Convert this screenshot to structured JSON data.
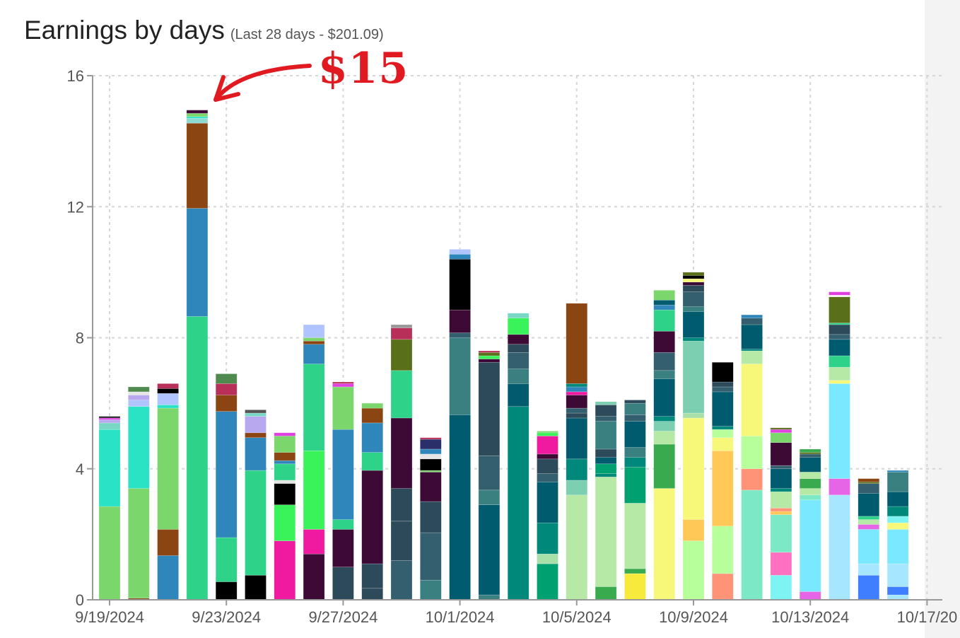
{
  "chart_data": {
    "type": "bar",
    "stacked": true,
    "title": "Earnings by days",
    "subtitle": "(Last 28 days - $201.09)",
    "annotation": "$15",
    "xlabel": "",
    "ylabel": "",
    "ylim": [
      0,
      16
    ],
    "yticks": [
      0,
      4,
      8,
      12,
      16
    ],
    "x_tick_labels": [
      "9/19/2024",
      "9/23/2024",
      "9/27/2024",
      "10/1/2024",
      "10/5/2024",
      "10/9/2024",
      "10/13/2024",
      "10/17/20"
    ],
    "grid": true,
    "categories": [
      "9/19/2024",
      "9/20/2024",
      "9/21/2024",
      "9/22/2024",
      "9/23/2024",
      "9/24/2024",
      "9/25/2024",
      "9/26/2024",
      "9/27/2024",
      "9/28/2024",
      "9/29/2024",
      "9/30/2024",
      "10/1/2024",
      "10/2/2024",
      "10/3/2024",
      "10/4/2024",
      "10/5/2024",
      "10/6/2024",
      "10/7/2024",
      "10/8/2024",
      "10/9/2024",
      "10/10/2024",
      "10/11/2024",
      "10/12/2024",
      "10/13/2024",
      "10/14/2024",
      "10/15/2024",
      "10/16/2024"
    ],
    "stacks": [
      [
        [
          2.85,
          "#7bd66b"
        ],
        [
          2.35,
          "#29e3c4"
        ],
        [
          0.2,
          "#7ad6c5"
        ],
        [
          0.1,
          "#b8a8ef"
        ],
        [
          0.05,
          "#e040e0"
        ],
        [
          0.05,
          "#222222"
        ]
      ],
      [
        [
          0.05,
          "#8b4513"
        ],
        [
          3.35,
          "#7bd66b"
        ],
        [
          2.5,
          "#29e3c4"
        ],
        [
          0.2,
          "#b0c4ff"
        ],
        [
          0.15,
          "#b8a8ef"
        ],
        [
          0.1,
          "#e6e6e6"
        ],
        [
          0.15,
          "#4f8a4f"
        ]
      ],
      [
        [
          1.35,
          "#2e86ba"
        ],
        [
          0.8,
          "#8b4513"
        ],
        [
          3.7,
          "#7bd66b"
        ],
        [
          0.1,
          "#29e3c4"
        ],
        [
          0.35,
          "#b0c4ff"
        ],
        [
          0.15,
          "#000000"
        ],
        [
          0.15,
          "#b8305a"
        ]
      ],
      [
        [
          8.65,
          "#2ed389"
        ],
        [
          3.3,
          "#2e86ba"
        ],
        [
          2.6,
          "#8b4513"
        ],
        [
          0.15,
          "#8ed9d0"
        ],
        [
          0.05,
          "#29e3c4"
        ],
        [
          0.1,
          "#7bd66b"
        ],
        [
          0.1,
          "#3d0a35"
        ]
      ],
      [
        [
          0.55,
          "#000000"
        ],
        [
          1.35,
          "#2ed389"
        ],
        [
          3.85,
          "#2e86ba"
        ],
        [
          0.5,
          "#8b4513"
        ],
        [
          0.35,
          "#b8305a"
        ],
        [
          0.3,
          "#4f8a4f"
        ]
      ],
      [
        [
          0.75,
          "#000000"
        ],
        [
          3.2,
          "#2ed389"
        ],
        [
          1.0,
          "#2e86ba"
        ],
        [
          0.15,
          "#8b4513"
        ],
        [
          0.5,
          "#b8a8ef"
        ],
        [
          0.1,
          "#7ad6c5"
        ],
        [
          0.1,
          "#555555"
        ]
      ],
      [
        [
          1.8,
          "#f01aa0"
        ],
        [
          1.1,
          "#3af25a"
        ],
        [
          0.65,
          "#000000"
        ],
        [
          0.1,
          "#e6e6e6"
        ],
        [
          0.5,
          "#2ed389"
        ],
        [
          0.1,
          "#2e86ba"
        ],
        [
          0.25,
          "#8b4513"
        ],
        [
          0.5,
          "#7bd66b"
        ],
        [
          0.1,
          "#e040e0"
        ]
      ],
      [
        [
          1.4,
          "#3d0a35"
        ],
        [
          0.75,
          "#f01aa0"
        ],
        [
          2.4,
          "#3af25a"
        ],
        [
          2.65,
          "#2ed389"
        ],
        [
          0.6,
          "#2e86ba"
        ],
        [
          0.1,
          "#8b4513"
        ],
        [
          0.1,
          "#7bd66b"
        ],
        [
          0.4,
          "#b0c4ff"
        ]
      ],
      [
        [
          1.0,
          "#2d4a5a"
        ],
        [
          1.15,
          "#3d0a35"
        ],
        [
          0.3,
          "#2ed389"
        ],
        [
          2.75,
          "#2e86ba"
        ],
        [
          1.3,
          "#7bd66b"
        ],
        [
          0.1,
          "#e040e0"
        ],
        [
          0.05,
          "#b8305a"
        ]
      ],
      [
        [
          0.35,
          "#2d4a5a"
        ],
        [
          0.75,
          "#2d4a5a"
        ],
        [
          2.85,
          "#3d0a35"
        ],
        [
          0.55,
          "#2ed389"
        ],
        [
          0.9,
          "#2e86ba"
        ],
        [
          0.45,
          "#8b4513"
        ],
        [
          0.15,
          "#7bd66b"
        ]
      ],
      [
        [
          1.2,
          "#335f6e"
        ],
        [
          1.2,
          "#2d4a5a"
        ],
        [
          1.0,
          "#2d4a5a"
        ],
        [
          2.15,
          "#3d0a35"
        ],
        [
          1.45,
          "#2ed389"
        ],
        [
          0.95,
          "#5a6f1a"
        ],
        [
          0.35,
          "#b8305a"
        ],
        [
          0.1,
          "#999999"
        ]
      ],
      [
        [
          0.6,
          "#3a8080"
        ],
        [
          1.45,
          "#335f6e"
        ],
        [
          0.95,
          "#2d4a5a"
        ],
        [
          0.9,
          "#3d0a35"
        ],
        [
          0.05,
          "#7bd66b"
        ],
        [
          0.35,
          "#000000"
        ],
        [
          0.15,
          "#e6e6e6"
        ],
        [
          0.15,
          "#2e86ba"
        ],
        [
          0.3,
          "#2a2f6a"
        ],
        [
          0.05,
          "#b8305a"
        ]
      ],
      [
        [
          5.65,
          "#005b6e"
        ],
        [
          2.35,
          "#3a8080"
        ],
        [
          0.15,
          "#335f6e"
        ],
        [
          0.7,
          "#3d0a35"
        ],
        [
          1.55,
          "#000000"
        ],
        [
          0.15,
          "#2e86ba"
        ],
        [
          0.15,
          "#b0c4ff"
        ]
      ],
      [
        [
          0.15,
          "#3a8080"
        ],
        [
          2.75,
          "#005b6e"
        ],
        [
          0.45,
          "#3a8080"
        ],
        [
          1.05,
          "#335f6e"
        ],
        [
          2.85,
          "#2d4a5a"
        ],
        [
          0.1,
          "#3d0a35"
        ],
        [
          0.1,
          "#3af25a"
        ],
        [
          0.1,
          "#5a6f1a"
        ],
        [
          0.05,
          "#b8305a"
        ]
      ],
      [
        [
          5.9,
          "#00897b"
        ],
        [
          0.7,
          "#005b6e"
        ],
        [
          0.45,
          "#3a8080"
        ],
        [
          0.5,
          "#335f6e"
        ],
        [
          0.25,
          "#2d4a5a"
        ],
        [
          0.3,
          "#3d0a35"
        ],
        [
          0.5,
          "#3af25a"
        ],
        [
          0.15,
          "#7ad6c5"
        ]
      ],
      [
        [
          1.1,
          "#00a070"
        ],
        [
          0.3,
          "#a9e0a9"
        ],
        [
          0.95,
          "#00897b"
        ],
        [
          1.25,
          "#005b6e"
        ],
        [
          0.25,
          "#335f6e"
        ],
        [
          0.45,
          "#2d4a5a"
        ],
        [
          0.15,
          "#3d0a35"
        ],
        [
          0.55,
          "#f01aa0"
        ],
        [
          0.1,
          "#3af25a"
        ],
        [
          0.05,
          "#7bd66b"
        ]
      ],
      [
        [
          3.2,
          "#b6e8a6"
        ],
        [
          0.45,
          "#7ccfb0"
        ],
        [
          0.65,
          "#00897b"
        ],
        [
          1.25,
          "#005b6e"
        ],
        [
          0.15,
          "#2d4a5a"
        ],
        [
          0.15,
          "#335f6e"
        ],
        [
          0.4,
          "#3d0a35"
        ],
        [
          0.1,
          "#f01aa0"
        ],
        [
          0.15,
          "#2e86ba"
        ],
        [
          0.1,
          "#00897b"
        ],
        [
          2.45,
          "#8b4513"
        ]
      ],
      [
        [
          0.4,
          "#3aaa4f"
        ],
        [
          3.35,
          "#b6e8a6"
        ],
        [
          0.1,
          "#00897b"
        ],
        [
          0.3,
          "#00a070"
        ],
        [
          0.2,
          "#005b6e"
        ],
        [
          0.25,
          "#2d4a5a"
        ],
        [
          0.85,
          "#3a8080"
        ],
        [
          0.15,
          "#335f6e"
        ],
        [
          0.35,
          "#2d4a5a"
        ],
        [
          0.1,
          "#7ccfb0"
        ]
      ],
      [
        [
          0.8,
          "#f7ea3d"
        ],
        [
          0.15,
          "#3aaa4f"
        ],
        [
          2.0,
          "#b6e8a6"
        ],
        [
          1.1,
          "#00a070"
        ],
        [
          0.3,
          "#00897b"
        ],
        [
          0.3,
          "#3a8080"
        ],
        [
          0.8,
          "#005b6e"
        ],
        [
          0.2,
          "#335f6e"
        ],
        [
          0.35,
          "#3a8080"
        ],
        [
          0.1,
          "#2d4a5a"
        ]
      ],
      [
        [
          3.4,
          "#f7f77a"
        ],
        [
          1.35,
          "#3aaa4f"
        ],
        [
          0.4,
          "#b6e8a6"
        ],
        [
          0.3,
          "#7ccfb0"
        ],
        [
          0.15,
          "#00897b"
        ],
        [
          1.15,
          "#005b6e"
        ],
        [
          0.25,
          "#3a8080"
        ],
        [
          0.55,
          "#335f6e"
        ],
        [
          0.65,
          "#3d0a35"
        ],
        [
          0.65,
          "#2ed389"
        ],
        [
          0.15,
          "#2e86ba"
        ],
        [
          0.15,
          "#005b6e"
        ],
        [
          0.3,
          "#7bd66b"
        ]
      ],
      [
        [
          1.8,
          "#b6ff9a"
        ],
        [
          0.65,
          "#ffc857"
        ],
        [
          3.1,
          "#f7f77a"
        ],
        [
          0.15,
          "#a9e0a9"
        ],
        [
          2.2,
          "#7ccfb0"
        ],
        [
          0.1,
          "#00897b"
        ],
        [
          0.8,
          "#005b6e"
        ],
        [
          0.15,
          "#3a8080"
        ],
        [
          0.45,
          "#335f6e"
        ],
        [
          0.2,
          "#2d4a5a"
        ],
        [
          0.1,
          "#3d0a35"
        ],
        [
          0.1,
          "#f7f77a"
        ],
        [
          0.1,
          "#000000"
        ],
        [
          0.1,
          "#5a6f1a"
        ]
      ],
      [
        [
          0.8,
          "#ff9378"
        ],
        [
          1.45,
          "#b6ff9a"
        ],
        [
          2.3,
          "#ffc857"
        ],
        [
          0.4,
          "#f7f77a"
        ],
        [
          0.25,
          "#b6ff9a"
        ],
        [
          0.1,
          "#00897b"
        ],
        [
          1.05,
          "#005b6e"
        ],
        [
          0.15,
          "#335f6e"
        ],
        [
          0.15,
          "#2d4a5a"
        ],
        [
          0.6,
          "#000000"
        ]
      ],
      [
        [
          3.35,
          "#7de8c5"
        ],
        [
          0.65,
          "#ff9378"
        ],
        [
          1.0,
          "#b6ff9a"
        ],
        [
          2.2,
          "#f7f77a"
        ],
        [
          0.4,
          "#b6e8a6"
        ],
        [
          0.05,
          "#00897b"
        ],
        [
          0.75,
          "#005b6e"
        ],
        [
          0.2,
          "#335f6e"
        ],
        [
          0.1,
          "#2e86ba"
        ]
      ],
      [
        [
          0.75,
          "#7df3f3"
        ],
        [
          0.7,
          "#ff70c0"
        ],
        [
          1.15,
          "#7de8c5"
        ],
        [
          0.1,
          "#ffc857"
        ],
        [
          0.1,
          "#ff9378"
        ],
        [
          0.5,
          "#b6e8a6"
        ],
        [
          0.1,
          "#00897b"
        ],
        [
          0.6,
          "#005b6e"
        ],
        [
          0.1,
          "#335f6e"
        ],
        [
          0.7,
          "#3d0a35"
        ],
        [
          0.3,
          "#7bd66b"
        ],
        [
          0.1,
          "#e040e0"
        ],
        [
          0.05,
          "#5a6f1a"
        ]
      ],
      [
        [
          0.25,
          "#e664e6"
        ],
        [
          2.8,
          "#7ae9ff"
        ],
        [
          0.15,
          "#7de8c5"
        ],
        [
          0.2,
          "#b6e8a6"
        ],
        [
          0.3,
          "#3aaa4f"
        ],
        [
          0.2,
          "#b6e8a6"
        ],
        [
          0.45,
          "#005b6e"
        ],
        [
          0.1,
          "#335f6e"
        ],
        [
          0.05,
          "#5a6f1a"
        ],
        [
          0.1,
          "#3aaa4f"
        ]
      ],
      [
        [
          3.2,
          "#a6e7ff"
        ],
        [
          0.5,
          "#e664e6"
        ],
        [
          2.9,
          "#7ae9ff"
        ],
        [
          0.1,
          "#f7f77a"
        ],
        [
          0.4,
          "#b6e8a6"
        ],
        [
          0.35,
          "#2ed389"
        ],
        [
          0.5,
          "#005b6e"
        ],
        [
          0.15,
          "#335f6e"
        ],
        [
          0.3,
          "#2d4a5a"
        ],
        [
          0.05,
          "#2ed389"
        ],
        [
          0.8,
          "#5a6f1a"
        ],
        [
          0.05,
          "#ffffff"
        ],
        [
          0.1,
          "#e040e0"
        ]
      ],
      [
        [
          0.75,
          "#3f7fff"
        ],
        [
          0.35,
          "#a6e7ff"
        ],
        [
          1.05,
          "#7ae9ff"
        ],
        [
          0.15,
          "#e664e6"
        ],
        [
          0.15,
          "#b6e8a6"
        ],
        [
          0.1,
          "#2ed389"
        ],
        [
          0.7,
          "#005b6e"
        ],
        [
          0.3,
          "#335f6e"
        ],
        [
          0.05,
          "#5a6f1a"
        ],
        [
          0.1,
          "#8b4513"
        ]
      ],
      [
        [
          0.15,
          "#a6e7ff"
        ],
        [
          0.25,
          "#3f7fff"
        ],
        [
          0.7,
          "#a6e7ff"
        ],
        [
          1.05,
          "#7ae9ff"
        ],
        [
          0.2,
          "#f7f77a"
        ],
        [
          0.2,
          "#7df3f3"
        ],
        [
          0.3,
          "#00897b"
        ],
        [
          0.45,
          "#005b6e"
        ],
        [
          0.6,
          "#3a8080"
        ],
        [
          0.05,
          "#2e86ba"
        ]
      ]
    ]
  }
}
